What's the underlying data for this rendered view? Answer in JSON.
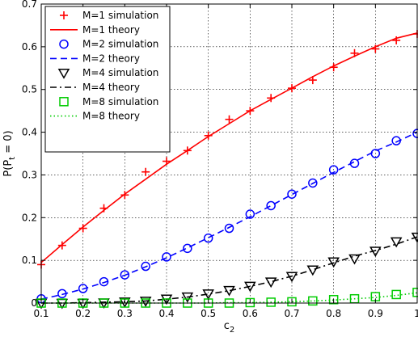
{
  "chart_data": {
    "type": "line",
    "title": "",
    "xlabel": "c",
    "xlabel_sub": "2",
    "ylabel_main": "P(P",
    "ylabel_sub": "t",
    "ylabel_tail": " = 0)",
    "xlim": [
      0.1,
      1.0
    ],
    "ylim": [
      0,
      0.7
    ],
    "xticks": [
      0.1,
      0.2,
      0.3,
      0.4,
      0.5,
      0.6,
      0.7,
      0.8,
      0.9,
      1.0
    ],
    "xtick_labels": [
      "0.1",
      "0.2",
      "0.3",
      "0.4",
      "0.5",
      "0.6",
      "0.7",
      "0.8",
      "0.9",
      "1"
    ],
    "yticks": [
      0,
      0.1,
      0.2,
      0.3,
      0.4,
      0.5,
      0.6,
      0.7
    ],
    "ytick_labels": [
      "0",
      "0.1",
      "0.2",
      "0.3",
      "0.4",
      "0.5",
      "0.6",
      "0.7"
    ],
    "grid": true,
    "legend_position": "top-left",
    "series": [
      {
        "name": "M=1 simulation",
        "kind": "markers",
        "marker": "plus",
        "color": "#ff0000",
        "x": [
          0.1,
          0.15,
          0.2,
          0.25,
          0.3,
          0.35,
          0.4,
          0.45,
          0.5,
          0.55,
          0.6,
          0.65,
          0.7,
          0.75,
          0.8,
          0.85,
          0.9,
          0.95,
          1.0
        ],
        "y": [
          0.09,
          0.135,
          0.175,
          0.222,
          0.253,
          0.307,
          0.332,
          0.357,
          0.392,
          0.43,
          0.45,
          0.48,
          0.503,
          0.522,
          0.552,
          0.585,
          0.595,
          0.615,
          0.63
        ]
      },
      {
        "name": "M=1 theory",
        "kind": "line",
        "dash": "solid",
        "color": "#ff0000",
        "x": [
          0.1,
          0.15,
          0.2,
          0.25,
          0.3,
          0.35,
          0.4,
          0.45,
          0.5,
          0.55,
          0.6,
          0.65,
          0.7,
          0.75,
          0.8,
          0.85,
          0.9,
          0.95,
          1.0
        ],
        "y": [
          0.095,
          0.137,
          0.178,
          0.217,
          0.255,
          0.29,
          0.325,
          0.357,
          0.39,
          0.42,
          0.45,
          0.477,
          0.503,
          0.53,
          0.555,
          0.578,
          0.6,
          0.62,
          0.632
        ]
      },
      {
        "name": "M=2 simulation",
        "kind": "markers",
        "marker": "circle",
        "color": "#0000ff",
        "x": [
          0.1,
          0.15,
          0.2,
          0.25,
          0.3,
          0.35,
          0.4,
          0.45,
          0.5,
          0.55,
          0.6,
          0.65,
          0.7,
          0.75,
          0.8,
          0.85,
          0.9,
          0.95,
          1.0
        ],
        "y": [
          0.01,
          0.022,
          0.034,
          0.05,
          0.066,
          0.086,
          0.108,
          0.128,
          0.152,
          0.175,
          0.208,
          0.228,
          0.255,
          0.281,
          0.312,
          0.327,
          0.35,
          0.38,
          0.397
        ]
      },
      {
        "name": "M=2 theory",
        "kind": "line",
        "dash": "dashed",
        "color": "#0000ff",
        "x": [
          0.1,
          0.15,
          0.2,
          0.25,
          0.3,
          0.35,
          0.4,
          0.45,
          0.5,
          0.55,
          0.6,
          0.65,
          0.7,
          0.75,
          0.8,
          0.85,
          0.9,
          0.95,
          1.0
        ],
        "y": [
          0.009,
          0.02,
          0.033,
          0.048,
          0.065,
          0.085,
          0.106,
          0.129,
          0.153,
          0.177,
          0.202,
          0.228,
          0.254,
          0.28,
          0.306,
          0.331,
          0.356,
          0.377,
          0.4
        ]
      },
      {
        "name": "M=4 simulation",
        "kind": "markers",
        "marker": "triangle-down",
        "color": "#000000",
        "x": [
          0.1,
          0.15,
          0.2,
          0.25,
          0.3,
          0.35,
          0.4,
          0.45,
          0.5,
          0.55,
          0.6,
          0.65,
          0.7,
          0.75,
          0.8,
          0.85,
          0.9,
          0.95,
          1.0
        ],
        "y": [
          0,
          0,
          0,
          0.001,
          0.003,
          0.005,
          0.01,
          0.015,
          0.022,
          0.03,
          0.04,
          0.05,
          0.063,
          0.078,
          0.097,
          0.104,
          0.122,
          0.144,
          0.155
        ]
      },
      {
        "name": "M=4 theory",
        "kind": "line",
        "dash": "dashdot",
        "color": "#000000",
        "x": [
          0.1,
          0.15,
          0.2,
          0.25,
          0.3,
          0.35,
          0.4,
          0.45,
          0.5,
          0.55,
          0.6,
          0.65,
          0.7,
          0.75,
          0.8,
          0.85,
          0.9,
          0.95,
          1.0
        ],
        "y": [
          0,
          0,
          0.001,
          0.002,
          0.003,
          0.005,
          0.009,
          0.014,
          0.021,
          0.029,
          0.039,
          0.05,
          0.063,
          0.078,
          0.094,
          0.11,
          0.123,
          0.138,
          0.155
        ]
      },
      {
        "name": "M=8 simulation",
        "kind": "markers",
        "marker": "square",
        "color": "#00cc00",
        "x": [
          0.1,
          0.15,
          0.2,
          0.25,
          0.3,
          0.35,
          0.4,
          0.45,
          0.5,
          0.55,
          0.6,
          0.65,
          0.7,
          0.75,
          0.8,
          0.85,
          0.9,
          0.95,
          1.0
        ],
        "y": [
          0,
          0,
          0,
          0,
          0,
          0,
          0,
          0,
          0,
          0,
          0.001,
          0.002,
          0.003,
          0.005,
          0.008,
          0.01,
          0.015,
          0.02,
          0.025
        ]
      },
      {
        "name": "M=8 theory",
        "kind": "line",
        "dash": "dotted",
        "color": "#00cc00",
        "x": [
          0.1,
          0.15,
          0.2,
          0.25,
          0.3,
          0.35,
          0.4,
          0.45,
          0.5,
          0.55,
          0.6,
          0.65,
          0.7,
          0.75,
          0.8,
          0.85,
          0.9,
          0.95,
          1.0
        ],
        "y": [
          0,
          0,
          0,
          0,
          0,
          0,
          0,
          0,
          0,
          0.001,
          0.001,
          0.002,
          0.003,
          0.005,
          0.007,
          0.01,
          0.013,
          0.018,
          0.024
        ]
      }
    ]
  }
}
